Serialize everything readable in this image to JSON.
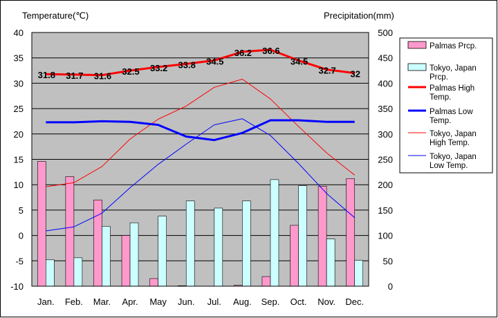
{
  "chart_data": {
    "type": "bar",
    "categories": [
      "Jan.",
      "Feb.",
      "Mar.",
      "Apr.",
      "May",
      "Jun.",
      "Jul.",
      "Aug.",
      "Sep.",
      "Oct.",
      "Nov.",
      "Dec."
    ],
    "y_left": {
      "label": "Temperature(℃)",
      "ylim": [
        -10,
        40
      ],
      "ticks": [
        "40",
        "35",
        "30",
        "25",
        "20",
        "15",
        "10",
        "5",
        "0",
        "-5",
        "-10"
      ]
    },
    "y_right": {
      "label": "Precipitation(mm)",
      "ylim": [
        0,
        500
      ],
      "ticks": [
        "500",
        "450",
        "400",
        "350",
        "300",
        "250",
        "200",
        "150",
        "100",
        "50",
        "0"
      ]
    },
    "grid": true,
    "legend_position": "right",
    "series": [
      {
        "name": "Palmas Prcp.",
        "kind": "bar",
        "axis": "right",
        "color": "#ff99cc",
        "values": [
          246,
          216,
          170,
          100,
          15,
          1,
          0,
          2,
          19,
          120,
          197,
          212
        ]
      },
      {
        "name": "Tokyo, Japan Prcp.",
        "kind": "bar",
        "axis": "right",
        "color": "#ccffff",
        "values": [
          52,
          56,
          118,
          125,
          138,
          168,
          154,
          168,
          210,
          198,
          93,
          51
        ]
      },
      {
        "name": "Palmas High Temp.",
        "kind": "line",
        "axis": "left",
        "color": "#ff0000",
        "width": 3,
        "values": [
          31.8,
          31.7,
          31.6,
          32.5,
          33.2,
          33.8,
          34.5,
          36.2,
          36.6,
          34.5,
          32.7,
          32
        ],
        "labels": [
          "31.8",
          "31.7",
          "31.6",
          "32.5",
          "33.2",
          "33.8",
          "34.5",
          "36.2",
          "36.6",
          "34.5",
          "32.7",
          "32"
        ]
      },
      {
        "name": "Palmas Low Temp.",
        "kind": "line",
        "axis": "left",
        "color": "#0000ff",
        "width": 3,
        "values": [
          22.3,
          22.3,
          22.5,
          22.4,
          21.8,
          19.5,
          18.8,
          20.2,
          22.7,
          22.7,
          22.4,
          22.4
        ]
      },
      {
        "name": "Tokyo, Japan High Temp.",
        "kind": "line",
        "axis": "left",
        "color": "#ff0000",
        "width": 1,
        "values": [
          9.6,
          10.4,
          13.6,
          19.0,
          22.9,
          25.5,
          29.2,
          30.8,
          26.9,
          21.5,
          16.3,
          11.9
        ]
      },
      {
        "name": "Tokyo, Japan Low Temp.",
        "kind": "line",
        "axis": "left",
        "color": "#0000ff",
        "width": 1,
        "values": [
          0.9,
          1.7,
          4.4,
          9.4,
          14.0,
          18.0,
          21.8,
          23.0,
          19.7,
          14.2,
          8.3,
          3.5
        ]
      }
    ],
    "legend": [
      {
        "lines": [
          "Palmas Prcp."
        ],
        "kind": "box",
        "color": "#ff99cc"
      },
      {
        "lines": [
          "Tokyo, Japan",
          "Prcp."
        ],
        "kind": "box",
        "color": "#ccffff"
      },
      {
        "lines": [
          "Palmas High",
          "Temp."
        ],
        "kind": "line",
        "color": "#ff0000",
        "width": 3
      },
      {
        "lines": [
          "Palmas Low",
          "Temp."
        ],
        "kind": "line",
        "color": "#0000ff",
        "width": 3
      },
      {
        "lines": [
          "Tokyo, Japan",
          "High Temp."
        ],
        "kind": "line",
        "color": "#ff0000",
        "width": 1
      },
      {
        "lines": [
          "Tokyo, Japan",
          "Low Temp."
        ],
        "kind": "line",
        "color": "#0000ff",
        "width": 1
      }
    ]
  }
}
